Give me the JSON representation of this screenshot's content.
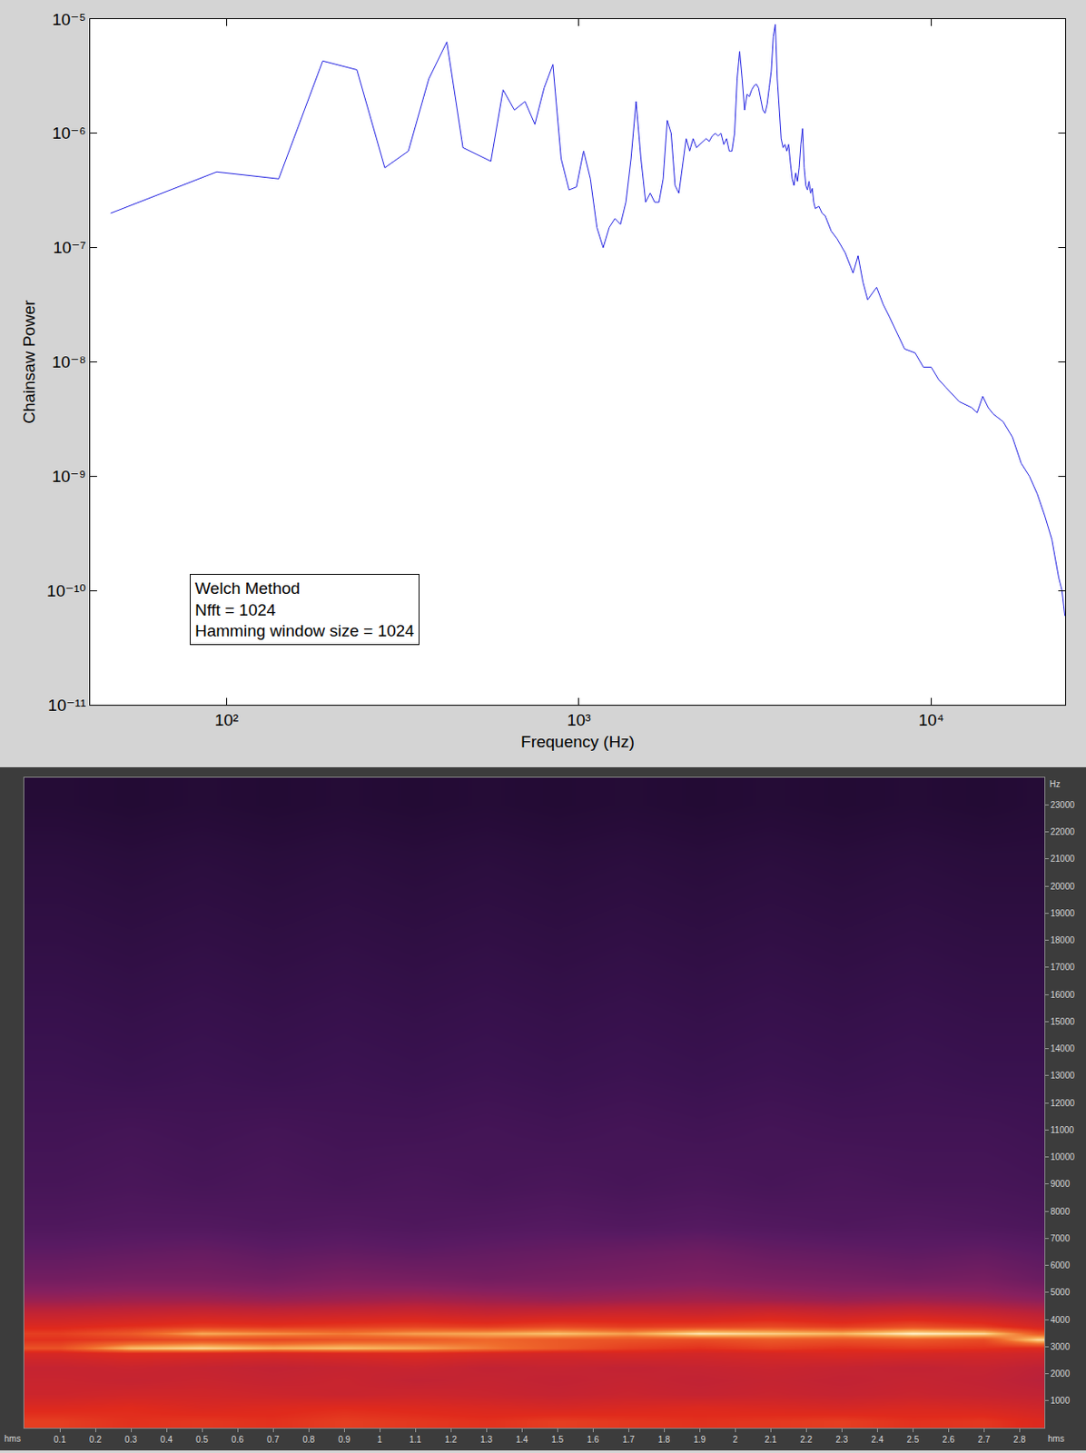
{
  "chart_data": [
    {
      "type": "line",
      "x_label": "Frequency (Hz)",
      "y_label": "Chainsaw Power",
      "annotations": [
        "Welch Method",
        "Nfft = 1024",
        "Hamming window size = 1024"
      ],
      "log": true,
      "grid": false,
      "color": "#1f1fe0",
      "xlim": [
        41,
        24000
      ],
      "ylim": [
        1e-11,
        1e-05
      ],
      "xticks": [
        {
          "value": 100,
          "label": "10²"
        },
        {
          "value": 1000,
          "label": "10³"
        },
        {
          "value": 10000,
          "label": "10⁴"
        }
      ],
      "yticks": [
        {
          "value": 1e-11,
          "label": "10⁻¹¹"
        },
        {
          "value": 1e-10,
          "label": "10⁻¹⁰"
        },
        {
          "value": 1e-09,
          "label": "10⁻⁹"
        },
        {
          "value": 1e-08,
          "label": "10⁻⁸"
        },
        {
          "value": 1e-07,
          "label": "10⁻⁷"
        },
        {
          "value": 1e-06,
          "label": "10⁻⁶"
        },
        {
          "value": 1e-05,
          "label": "10⁻⁵"
        }
      ],
      "x": [
        46.875,
        93.75,
        140.625,
        187.5,
        234.375,
        281.25,
        328.125,
        375,
        421.875,
        468.75,
        515.625,
        562.5,
        609.375,
        656.25,
        703.125,
        750,
        796.875,
        843.75,
        890.625,
        937.5,
        984.375,
        1031.25,
        1078.125,
        1125,
        1171.875,
        1218.75,
        1265.625,
        1312.5,
        1359.375,
        1406.25,
        1453.125,
        1500,
        1546.875,
        1593.75,
        1640.625,
        1687.5,
        1734.375,
        1781.25,
        1828.125,
        1875,
        1921.875,
        1968.75,
        2015.625,
        2062.5,
        2109.375,
        2156.25,
        2203.125,
        2250,
        2296.875,
        2343.75,
        2390.625,
        2437.5,
        2484.375,
        2531.25,
        2578.125,
        2625,
        2671.875,
        2718.75,
        2765.625,
        2812.5,
        2859.375,
        2906.25,
        2953.125,
        3000,
        3046.875,
        3093.75,
        3140.625,
        3187.5,
        3234.375,
        3281.25,
        3328.125,
        3375,
        3421.875,
        3468.75,
        3515.625,
        3562.5,
        3609.375,
        3656.25,
        3703.125,
        3750,
        3796.875,
        3843.75,
        3890.625,
        3937.5,
        3984.375,
        4031.25,
        4078.125,
        4125,
        4171.875,
        4218.75,
        4265.625,
        4312.5,
        4359.375,
        4406.25,
        4453.125,
        4500,
        4546.875,
        4593.75,
        4640.625,
        4687.5,
        4800,
        4900,
        5000,
        5200,
        5400,
        5700,
        6000,
        6200,
        6400,
        6600,
        7000,
        7300,
        7600,
        8000,
        8400,
        9000,
        9500,
        10000,
        10500,
        11000,
        12000,
        13000,
        13500,
        14000,
        14500,
        15000,
        16000,
        17000,
        18000,
        19000,
        20000,
        21000,
        22000,
        23000,
        23500,
        23953.125
      ],
      "values": [
        2e-07,
        4.6e-07,
        4e-07,
        4.3e-06,
        3.6e-06,
        5e-07,
        7e-07,
        3e-06,
        6.3e-06,
        7.5e-07,
        6.5e-07,
        5.7e-07,
        2.4e-06,
        1.6e-06,
        1.9e-06,
        1.2e-06,
        2.5e-06,
        4e-06,
        6e-07,
        3.2e-07,
        3.4e-07,
        7e-07,
        4e-07,
        1.5e-07,
        1e-07,
        1.5e-07,
        1.8e-07,
        1.6e-07,
        2.5e-07,
        6e-07,
        1.9e-06,
        6e-07,
        2.5e-07,
        3e-07,
        2.5e-07,
        2.5e-07,
        4e-07,
        1.3e-06,
        1e-06,
        3.5e-07,
        3e-07,
        5e-07,
        9e-07,
        7e-07,
        9e-07,
        7.5e-07,
        8e-07,
        8.5e-07,
        9e-07,
        8.5e-07,
        9.5e-07,
        1e-06,
        9.5e-07,
        1e-06,
        8e-07,
        9e-07,
        7e-07,
        7e-07,
        1e-06,
        3e-06,
        5.2e-06,
        3e-06,
        1.6e-06,
        2.2e-06,
        2.1e-06,
        2.4e-06,
        2.6e-06,
        2.7e-06,
        2.5e-06,
        2e-06,
        1.6e-06,
        1.5e-06,
        1.8e-06,
        2.5e-06,
        3.5e-06,
        7e-06,
        9e-06,
        3e-06,
        1.5e-06,
        9e-07,
        7.5e-07,
        8e-07,
        7e-07,
        8e-07,
        5.5e-07,
        4e-07,
        3.5e-07,
        4.5e-07,
        3.8e-07,
        5e-07,
        8e-07,
        1.1e-06,
        5e-07,
        3.5e-07,
        3.2e-07,
        3.8e-07,
        3e-07,
        3.3e-07,
        2.5e-07,
        2.2e-07,
        2.3e-07,
        2e-07,
        1.9e-07,
        1.4e-07,
        1.2e-07,
        9e-08,
        6e-08,
        8.5e-08,
        5e-08,
        3.5e-08,
        4.5e-08,
        3.2e-08,
        2.5e-08,
        1.8e-08,
        1.3e-08,
        1.2e-08,
        9e-09,
        9e-09,
        7e-09,
        6e-09,
        4.5e-09,
        4e-09,
        3.6e-09,
        5e-09,
        4e-09,
        3.5e-09,
        3e-09,
        2.2e-09,
        1.3e-09,
        1e-09,
        7e-10,
        4.5e-10,
        2.8e-10,
        1.3e-10,
        1e-10,
        6e-11
      ]
    },
    {
      "type": "heatmap",
      "x_label": "hms",
      "y_label": "Hz",
      "grid": false,
      "xlim": [
        0,
        2.87
      ],
      "ylim": [
        0,
        24000
      ],
      "xticks": [
        0.1,
        0.2,
        0.3,
        0.4,
        0.5,
        0.6,
        0.7,
        0.8,
        0.9,
        1.0,
        1.1,
        1.2,
        1.3,
        1.4,
        1.5,
        1.6,
        1.7,
        1.8,
        1.9,
        2.0,
        2.1,
        2.2,
        2.3,
        2.4,
        2.5,
        2.6,
        2.7,
        2.8
      ],
      "yticks": [
        1000,
        2000,
        3000,
        4000,
        5000,
        6000,
        7000,
        8000,
        9000,
        10000,
        11000,
        12000,
        13000,
        14000,
        15000,
        16000,
        17000,
        18000,
        19000,
        20000,
        21000,
        22000,
        23000
      ],
      "x": [
        0.1,
        0.3,
        0.5,
        0.7,
        0.9,
        1.1,
        1.3,
        1.5,
        1.7,
        1.9,
        2.1,
        2.3,
        2.5,
        2.7,
        2.85
      ],
      "y": [
        250,
        750,
        1250,
        1750,
        2250,
        2750,
        2950,
        3250,
        3500,
        3750,
        4250,
        4750,
        5500,
        6500,
        7500,
        9000,
        11000,
        13000,
        15000,
        17000,
        19000,
        21000,
        23000
      ],
      "cells": [
        [
          7.2,
          7.0,
          7.1,
          7.0,
          7.2,
          7.1,
          7.0,
          7.2,
          7.1,
          7.0,
          7.1,
          7.2,
          7.0,
          7.1,
          6.8
        ],
        [
          6.8,
          6.9,
          6.7,
          6.8,
          6.9,
          6.8,
          6.7,
          6.6,
          6.7,
          6.8,
          6.7,
          6.6,
          6.7,
          6.6,
          6.4
        ],
        [
          6.3,
          6.4,
          6.4,
          6.3,
          6.2,
          6.3,
          6.2,
          6.1,
          6.2,
          6.1,
          6.2,
          6.1,
          6.2,
          6.1,
          6.0
        ],
        [
          6.2,
          6.1,
          6.2,
          6.1,
          6.2,
          6.0,
          6.1,
          6.0,
          6.1,
          6.0,
          6.1,
          6.0,
          6.1,
          6.0,
          5.8
        ],
        [
          6.1,
          6.2,
          6.1,
          6.0,
          6.1,
          6.2,
          6.0,
          6.1,
          6.0,
          6.1,
          6.2,
          6.1,
          6.0,
          6.1,
          5.9
        ],
        [
          6.6,
          6.8,
          6.7,
          6.6,
          6.7,
          6.8,
          6.6,
          6.5,
          6.6,
          6.5,
          6.6,
          6.7,
          6.6,
          6.5,
          6.4
        ],
        [
          7.5,
          8.6,
          8.8,
          8.5,
          8.6,
          8.4,
          8.0,
          7.6,
          7.2,
          7.0,
          7.2,
          7.0,
          7.1,
          7.0,
          6.8
        ],
        [
          7.0,
          7.2,
          7.4,
          7.3,
          7.5,
          7.6,
          7.8,
          7.6,
          7.5,
          7.4,
          7.6,
          7.5,
          7.6,
          7.4,
          8.8
        ],
        [
          7.2,
          7.6,
          8.4,
          8.2,
          8.0,
          8.3,
          8.4,
          8.6,
          8.3,
          8.9,
          8.7,
          8.5,
          9.0,
          8.8,
          7.6
        ],
        [
          6.8,
          7.0,
          7.2,
          7.1,
          7.2,
          7.3,
          7.2,
          7.4,
          7.2,
          7.3,
          7.4,
          7.2,
          7.5,
          7.2,
          6.6
        ],
        [
          6.0,
          6.1,
          6.2,
          6.1,
          6.2,
          6.3,
          6.1,
          6.2,
          6.3,
          6.2,
          6.4,
          6.2,
          6.3,
          6.1,
          5.8
        ],
        [
          5.2,
          5.3,
          5.3,
          5.2,
          5.3,
          5.4,
          5.3,
          5.2,
          5.3,
          5.4,
          5.3,
          5.2,
          5.3,
          5.2,
          5.0
        ],
        [
          4.4,
          4.5,
          4.5,
          4.4,
          4.6,
          4.5,
          4.4,
          4.5,
          4.6,
          4.7,
          4.6,
          4.5,
          4.4,
          4.5,
          4.2
        ],
        [
          3.9,
          4.0,
          4.1,
          3.9,
          4.0,
          3.9,
          4.0,
          4.1,
          4.2,
          4.3,
          4.1,
          4.0,
          3.9,
          4.0,
          3.8
        ],
        [
          3.4,
          3.5,
          3.5,
          3.4,
          3.5,
          3.4,
          3.5,
          3.6,
          3.5,
          3.6,
          3.5,
          3.4,
          3.5,
          3.4,
          3.3
        ],
        [
          3.1,
          3.2,
          3.1,
          3.2,
          3.1,
          3.2,
          3.1,
          3.2,
          3.1,
          3.2,
          3.1,
          3.2,
          3.1,
          3.1,
          3.0
        ],
        [
          2.9,
          3.0,
          2.9,
          3.0,
          2.9,
          2.9,
          3.0,
          2.9,
          3.0,
          2.9,
          3.0,
          2.9,
          2.9,
          2.9,
          2.8
        ],
        [
          2.7,
          2.6,
          2.7,
          2.6,
          2.7,
          2.6,
          2.7,
          2.6,
          2.7,
          2.6,
          2.7,
          2.6,
          2.7,
          2.6,
          2.6
        ],
        [
          2.5,
          2.4,
          2.5,
          2.4,
          2.5,
          2.4,
          2.5,
          2.4,
          2.5,
          2.4,
          2.5,
          2.4,
          2.5,
          2.4,
          2.4
        ],
        [
          2.3,
          2.2,
          2.3,
          2.2,
          2.3,
          2.2,
          2.3,
          2.2,
          2.3,
          2.2,
          2.3,
          2.2,
          2.3,
          2.2,
          2.2
        ],
        [
          2.1,
          2.0,
          2.1,
          2.0,
          2.1,
          2.0,
          2.1,
          2.0,
          2.1,
          2.0,
          2.1,
          2.0,
          2.1,
          2.0,
          2.0
        ],
        [
          1.9,
          1.8,
          1.9,
          1.8,
          1.9,
          1.8,
          1.9,
          1.8,
          1.9,
          1.8,
          1.9,
          1.8,
          1.9,
          1.8,
          1.8
        ],
        [
          1.6,
          1.5,
          1.6,
          1.5,
          1.6,
          1.5,
          1.6,
          1.5,
          1.6,
          1.5,
          1.6,
          1.5,
          1.6,
          1.5,
          1.6
        ]
      ]
    }
  ]
}
